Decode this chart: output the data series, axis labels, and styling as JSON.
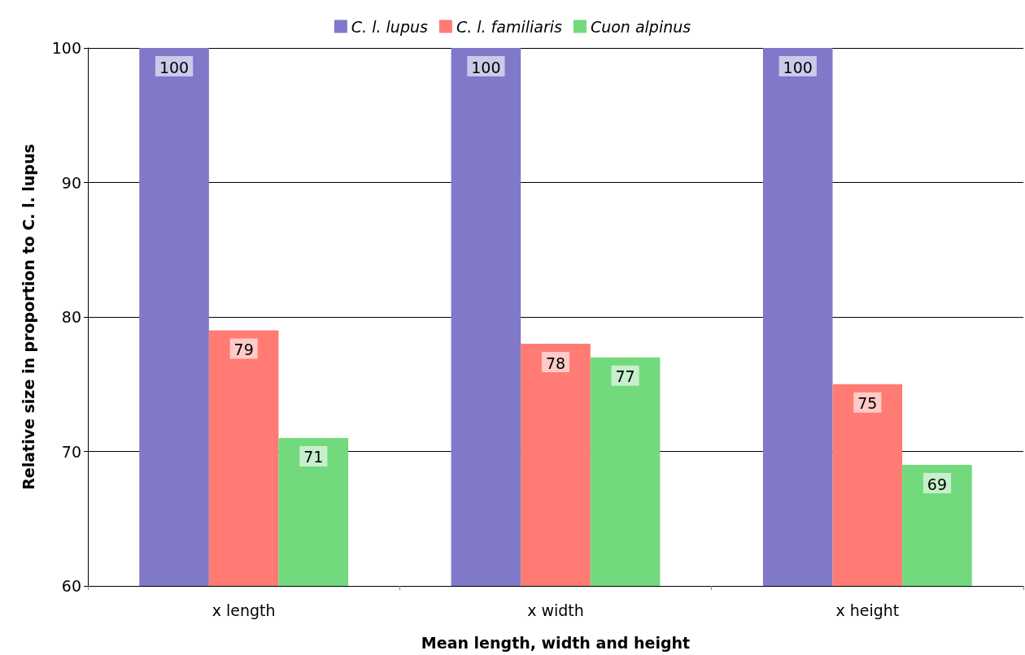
{
  "chart_data": {
    "type": "bar",
    "xlabel": "Mean length, width and height",
    "ylabel": "Relative size in proportion to C. l. lupus",
    "categories": [
      "x length",
      "x width",
      "x height"
    ],
    "series": [
      {
        "name": "C. l. lupus",
        "color": "#8079c9",
        "values": [
          100,
          100,
          100
        ]
      },
      {
        "name": "C. l. familiaris",
        "color": "#ff7b74",
        "values": [
          79,
          78,
          75
        ]
      },
      {
        "name": "Cuon alpinus",
        "color": "#72da7d",
        "values": [
          71,
          77,
          69
        ]
      }
    ],
    "ylim": [
      60,
      100
    ],
    "yticks": [
      60,
      70,
      80,
      90,
      100
    ],
    "grid": "y",
    "legend": "top",
    "data_labels": true
  }
}
